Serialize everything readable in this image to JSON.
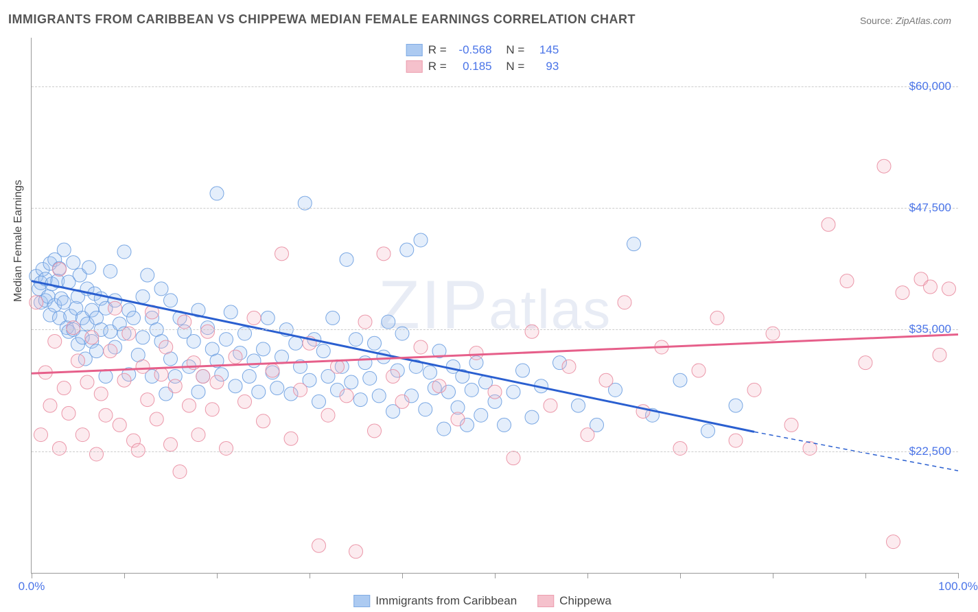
{
  "title": "IMMIGRANTS FROM CARIBBEAN VS CHIPPEWA MEDIAN FEMALE EARNINGS CORRELATION CHART",
  "source_label": "Source:",
  "source_value": "ZipAtlas.com",
  "ylabel": "Median Female Earnings",
  "watermark": "ZIPatlas",
  "chart": {
    "type": "scatter-with-regression",
    "background_color": "#ffffff",
    "grid_color": "#cccccc",
    "axis_color": "#999999",
    "x": {
      "min": 0,
      "max": 100,
      "label_min": "0.0%",
      "label_max": "100.0%",
      "tick_positions_pct": [
        0,
        10,
        20,
        30,
        40,
        50,
        60,
        70,
        80,
        90,
        100
      ]
    },
    "y": {
      "min": 10000,
      "max": 65000,
      "ticks": [
        {
          "value": 22500,
          "label": "$22,500"
        },
        {
          "value": 35000,
          "label": "$35,000"
        },
        {
          "value": 47500,
          "label": "$47,500"
        },
        {
          "value": 60000,
          "label": "$60,000"
        }
      ],
      "label_color": "#4a74e8",
      "label_fontsize": 17
    },
    "marker": {
      "radius": 10,
      "fill_opacity": 0.28,
      "stroke_opacity": 0.9,
      "stroke_width": 1
    },
    "series": [
      {
        "id": "caribbean",
        "label": "Immigrants from Caribbean",
        "color_fill": "#9ec1ef",
        "color_stroke": "#6a9de0",
        "line_color": "#2a5fd0",
        "line_width": 3,
        "R": "-0.568",
        "N": "145",
        "regression": {
          "x0": 0,
          "y0": 40000,
          "x1": 78,
          "y1": 24500,
          "extrapolate_to_x": 100,
          "extrapolate_y": 20500,
          "dash_extrapolate": "6,5"
        },
        "points": [
          [
            0.5,
            40500
          ],
          [
            0.8,
            39200
          ],
          [
            1,
            39800
          ],
          [
            1,
            37800
          ],
          [
            1.2,
            41200
          ],
          [
            1.5,
            38000
          ],
          [
            1.5,
            40200
          ],
          [
            1.8,
            38400
          ],
          [
            2,
            41800
          ],
          [
            2,
            36500
          ],
          [
            2.2,
            39700
          ],
          [
            2.5,
            37500
          ],
          [
            2.5,
            42200
          ],
          [
            2.8,
            40000
          ],
          [
            3,
            41300
          ],
          [
            3,
            36200
          ],
          [
            3.2,
            38200
          ],
          [
            3.5,
            43200
          ],
          [
            3.5,
            37800
          ],
          [
            3.8,
            35200
          ],
          [
            4,
            39900
          ],
          [
            4,
            34800
          ],
          [
            4.2,
            36400
          ],
          [
            4.5,
            41900
          ],
          [
            4.5,
            35000
          ],
          [
            4.8,
            37200
          ],
          [
            5,
            38400
          ],
          [
            5,
            33500
          ],
          [
            5.2,
            40600
          ],
          [
            5.5,
            36200
          ],
          [
            5.5,
            34200
          ],
          [
            5.8,
            32000
          ],
          [
            6,
            39200
          ],
          [
            6,
            35600
          ],
          [
            6.2,
            41400
          ],
          [
            6.5,
            33800
          ],
          [
            6.5,
            37000
          ],
          [
            6.8,
            38700
          ],
          [
            7,
            32800
          ],
          [
            7,
            36200
          ],
          [
            7.5,
            35000
          ],
          [
            7.5,
            38200
          ],
          [
            8,
            30200
          ],
          [
            8,
            37200
          ],
          [
            8.5,
            34800
          ],
          [
            8.5,
            41000
          ],
          [
            9,
            33200
          ],
          [
            9,
            38000
          ],
          [
            9.5,
            35600
          ],
          [
            10,
            43000
          ],
          [
            10,
            34600
          ],
          [
            10.5,
            37000
          ],
          [
            10.5,
            30400
          ],
          [
            11,
            36200
          ],
          [
            11.5,
            32400
          ],
          [
            12,
            38400
          ],
          [
            12,
            34200
          ],
          [
            12.5,
            40600
          ],
          [
            13,
            30200
          ],
          [
            13,
            36200
          ],
          [
            13.5,
            35000
          ],
          [
            14,
            33800
          ],
          [
            14,
            39200
          ],
          [
            14.5,
            28400
          ],
          [
            15,
            38000
          ],
          [
            15,
            32000
          ],
          [
            15.5,
            30200
          ],
          [
            16,
            36200
          ],
          [
            16.5,
            34800
          ],
          [
            17,
            31200
          ],
          [
            17.5,
            33800
          ],
          [
            18,
            37000
          ],
          [
            18,
            28600
          ],
          [
            18.5,
            30200
          ],
          [
            19,
            35200
          ],
          [
            19.5,
            33000
          ],
          [
            20,
            31800
          ],
          [
            20,
            49000
          ],
          [
            20.5,
            30400
          ],
          [
            21,
            34000
          ],
          [
            21.5,
            36800
          ],
          [
            22,
            29200
          ],
          [
            22.5,
            32600
          ],
          [
            23,
            34600
          ],
          [
            23.5,
            30200
          ],
          [
            24,
            31800
          ],
          [
            24.5,
            28600
          ],
          [
            25,
            33000
          ],
          [
            25.5,
            36200
          ],
          [
            26,
            30600
          ],
          [
            26.5,
            29000
          ],
          [
            27,
            32200
          ],
          [
            27.5,
            35000
          ],
          [
            28,
            28400
          ],
          [
            28.5,
            33600
          ],
          [
            29,
            31200
          ],
          [
            29.5,
            48000
          ],
          [
            30,
            29800
          ],
          [
            30.5,
            34000
          ],
          [
            31,
            27600
          ],
          [
            31.5,
            32800
          ],
          [
            32,
            30200
          ],
          [
            32.5,
            36200
          ],
          [
            33,
            28800
          ],
          [
            33.5,
            31200
          ],
          [
            34,
            42200
          ],
          [
            34.5,
            29600
          ],
          [
            35,
            34000
          ],
          [
            35.5,
            27800
          ],
          [
            36,
            31600
          ],
          [
            36.5,
            30000
          ],
          [
            37,
            33600
          ],
          [
            37.5,
            28200
          ],
          [
            38,
            32200
          ],
          [
            38.5,
            35800
          ],
          [
            39,
            26600
          ],
          [
            39.5,
            30800
          ],
          [
            40,
            34600
          ],
          [
            40.5,
            43200
          ],
          [
            41,
            28200
          ],
          [
            41.5,
            31200
          ],
          [
            42,
            44200
          ],
          [
            42.5,
            26800
          ],
          [
            43,
            30600
          ],
          [
            43.5,
            29000
          ],
          [
            44,
            32800
          ],
          [
            44.5,
            24800
          ],
          [
            45,
            28600
          ],
          [
            45.5,
            31200
          ],
          [
            46,
            27000
          ],
          [
            46.5,
            30200
          ],
          [
            47,
            25200
          ],
          [
            47.5,
            28800
          ],
          [
            48,
            31600
          ],
          [
            48.5,
            26200
          ],
          [
            49,
            29600
          ],
          [
            50,
            27600
          ],
          [
            51,
            25200
          ],
          [
            52,
            28600
          ],
          [
            53,
            30800
          ],
          [
            54,
            26000
          ],
          [
            55,
            29200
          ],
          [
            57,
            31600
          ],
          [
            59,
            27200
          ],
          [
            61,
            25200
          ],
          [
            63,
            28800
          ],
          [
            65,
            43800
          ],
          [
            67,
            26200
          ],
          [
            70,
            29800
          ],
          [
            73,
            24600
          ],
          [
            76,
            27200
          ]
        ]
      },
      {
        "id": "chippewa",
        "label": "Chippewa",
        "color_fill": "#f4b7c4",
        "color_stroke": "#e98ca0",
        "line_color": "#e65f8a",
        "line_width": 3,
        "R": "0.185",
        "N": "93",
        "regression": {
          "x0": 0,
          "y0": 30500,
          "x1": 100,
          "y1": 34500,
          "extrapolate_to_x": null
        },
        "points": [
          [
            0.5,
            37800
          ],
          [
            1,
            24200
          ],
          [
            1.5,
            30600
          ],
          [
            2,
            27200
          ],
          [
            2.5,
            33800
          ],
          [
            3,
            22800
          ],
          [
            3,
            41200
          ],
          [
            3.5,
            29000
          ],
          [
            4,
            26400
          ],
          [
            4.5,
            35200
          ],
          [
            5,
            31800
          ],
          [
            5.5,
            24200
          ],
          [
            6,
            29600
          ],
          [
            6.5,
            34200
          ],
          [
            7,
            22200
          ],
          [
            7.5,
            28400
          ],
          [
            8,
            26200
          ],
          [
            8.5,
            32800
          ],
          [
            9,
            37200
          ],
          [
            9.5,
            25200
          ],
          [
            10,
            29800
          ],
          [
            10.5,
            34600
          ],
          [
            11,
            23600
          ],
          [
            11.5,
            22600
          ],
          [
            12,
            31200
          ],
          [
            12.5,
            27800
          ],
          [
            13,
            36800
          ],
          [
            13.5,
            25800
          ],
          [
            14,
            30400
          ],
          [
            14.5,
            33200
          ],
          [
            15,
            23200
          ],
          [
            15.5,
            29200
          ],
          [
            16,
            20400
          ],
          [
            16.5,
            35800
          ],
          [
            17,
            27200
          ],
          [
            17.5,
            31600
          ],
          [
            18,
            24200
          ],
          [
            18.5,
            30200
          ],
          [
            19,
            34800
          ],
          [
            19.5,
            26800
          ],
          [
            20,
            29600
          ],
          [
            21,
            22800
          ],
          [
            22,
            32200
          ],
          [
            23,
            27600
          ],
          [
            24,
            36200
          ],
          [
            25,
            25600
          ],
          [
            26,
            30800
          ],
          [
            27,
            42800
          ],
          [
            28,
            23800
          ],
          [
            29,
            28800
          ],
          [
            30,
            33600
          ],
          [
            31,
            12800
          ],
          [
            32,
            26200
          ],
          [
            33,
            31200
          ],
          [
            34,
            28200
          ],
          [
            35,
            12200
          ],
          [
            36,
            35800
          ],
          [
            37,
            24600
          ],
          [
            38,
            42800
          ],
          [
            39,
            30200
          ],
          [
            40,
            27600
          ],
          [
            42,
            33200
          ],
          [
            44,
            29200
          ],
          [
            46,
            25800
          ],
          [
            48,
            32600
          ],
          [
            50,
            28600
          ],
          [
            52,
            21800
          ],
          [
            54,
            34800
          ],
          [
            56,
            27200
          ],
          [
            58,
            31200
          ],
          [
            60,
            24200
          ],
          [
            62,
            29800
          ],
          [
            64,
            37800
          ],
          [
            66,
            26600
          ],
          [
            68,
            33200
          ],
          [
            70,
            22800
          ],
          [
            72,
            30800
          ],
          [
            74,
            36200
          ],
          [
            76,
            23600
          ],
          [
            78,
            28800
          ],
          [
            80,
            34600
          ],
          [
            82,
            25200
          ],
          [
            84,
            22800
          ],
          [
            86,
            45800
          ],
          [
            88,
            40000
          ],
          [
            90,
            31600
          ],
          [
            92,
            51800
          ],
          [
            93,
            13200
          ],
          [
            94,
            38800
          ],
          [
            96,
            40200
          ],
          [
            97,
            39400
          ],
          [
            98,
            32400
          ],
          [
            99,
            39200
          ]
        ]
      }
    ]
  },
  "legend_top": {
    "r_label": "R =",
    "n_label": "N ="
  }
}
